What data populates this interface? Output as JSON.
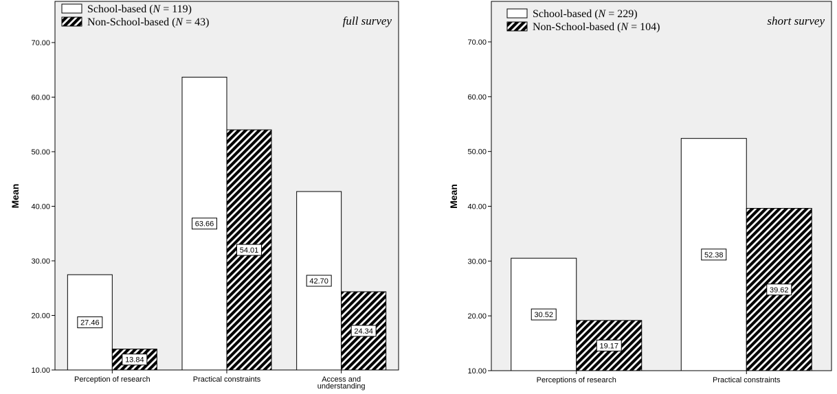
{
  "chart_data": [
    {
      "type": "bar",
      "tag": "full survey",
      "ylabel": "Mean",
      "ylim": [
        10,
        70
      ],
      "yticks": [
        "10.00",
        "20.00",
        "30.00",
        "40.00",
        "50.00",
        "60.00",
        "70.00"
      ],
      "grid": false,
      "legend_placement": "top-left",
      "categories": [
        [
          "Perception of research"
        ],
        [
          "Practical constraints"
        ],
        [
          "Access and",
          "understanding"
        ]
      ],
      "series": [
        {
          "legend": {
            "pre": "School-based (",
            "n": "N",
            "post": " = 119)"
          },
          "pattern": "white",
          "values": [
            27.46,
            63.66,
            42.7
          ],
          "labels": [
            "27.46",
            "63.66",
            "42.70"
          ]
        },
        {
          "legend": {
            "pre": "Non-School-based (",
            "n": "N",
            "post": " = 43)"
          },
          "pattern": "hatched",
          "values": [
            13.84,
            54.01,
            24.34
          ],
          "labels": [
            "13.84",
            "54.01",
            "24.34"
          ]
        }
      ]
    },
    {
      "type": "bar",
      "tag": "short survey",
      "ylabel": "Mean",
      "ylim": [
        10,
        70
      ],
      "yticks": [
        "10.00",
        "20.00",
        "30.00",
        "40.00",
        "50.00",
        "60.00",
        "70.00"
      ],
      "grid": false,
      "legend_placement": "top-left",
      "categories": [
        [
          "Perceptions of research"
        ],
        [
          "Practical constraints"
        ]
      ],
      "series": [
        {
          "legend": {
            "pre": "School-based (",
            "n": "N",
            "post": " = 229)"
          },
          "pattern": "white",
          "values": [
            30.52,
            52.38
          ],
          "labels": [
            "30.52",
            "52.38"
          ]
        },
        {
          "legend": {
            "pre": "Non-School-based (",
            "n": "N",
            "post": " = 104)"
          },
          "pattern": "hatched",
          "values": [
            19.17,
            39.62
          ],
          "labels": [
            "19.17",
            "39.62"
          ]
        }
      ]
    }
  ]
}
